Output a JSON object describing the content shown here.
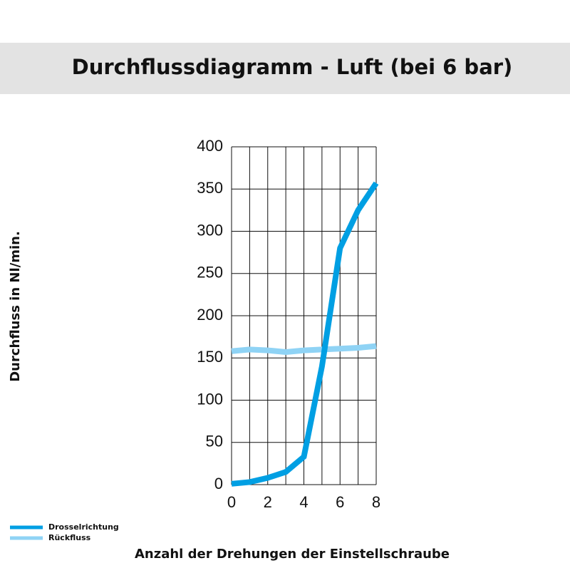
{
  "chart_data": {
    "type": "line",
    "title": "Durchflussdiagramm - Luft (bei 6 bar)",
    "x_label": "Anzahl der Drehungen der Einstellschraube",
    "y_label": "Durchfluss in Nl/min.",
    "x": [
      0,
      1,
      2,
      3,
      4,
      5,
      6,
      7,
      8
    ],
    "series": [
      {
        "name": "Drosselrichtung",
        "color": "#009fe3",
        "values": [
          1,
          3,
          8,
          15,
          33,
          140,
          280,
          325,
          357
        ]
      },
      {
        "name": "Rückfluss",
        "color": "#8fd3f5",
        "values": [
          158,
          160,
          159,
          157,
          159,
          160,
          161,
          162,
          164
        ]
      }
    ],
    "xlim": [
      0,
      8
    ],
    "xticks": [
      0,
      2,
      4,
      6,
      8
    ],
    "x_minor_grid": [
      1,
      3,
      5,
      7
    ],
    "ylim": [
      0,
      400
    ],
    "yticks": [
      0,
      50,
      100,
      150,
      200,
      250,
      300,
      350,
      400
    ],
    "grid": true,
    "legend": "bottom-left"
  }
}
